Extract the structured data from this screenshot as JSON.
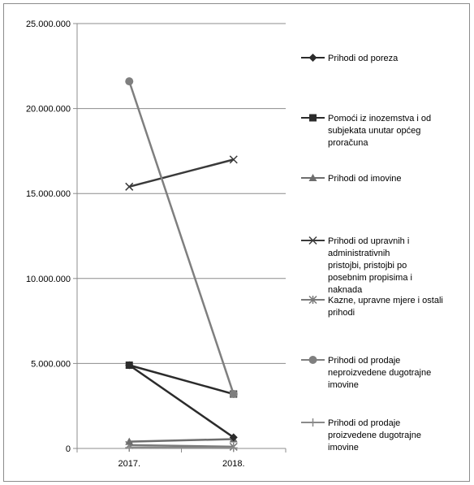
{
  "chart_data": {
    "type": "line",
    "title": "",
    "xlabel": "",
    "ylabel": "",
    "categories": [
      "2017.",
      "2018."
    ],
    "ylim": [
      0,
      25000000
    ],
    "y_ticks": [
      {
        "value": 0,
        "label": "0"
      },
      {
        "value": 5000000,
        "label": "5.000.000"
      },
      {
        "value": 10000000,
        "label": "10.000.000"
      },
      {
        "value": 15000000,
        "label": "15.000.000"
      },
      {
        "value": 20000000,
        "label": "20.000.000"
      },
      {
        "value": 25000000,
        "label": "25.000.000"
      }
    ],
    "grid": true,
    "legend_position": "right",
    "series": [
      {
        "name": "Prihodi od poreza",
        "legend_lines": [
          "Prihodi od poreza"
        ],
        "values": [
          4900000,
          650000
        ],
        "color": "#2b2b2b",
        "marker": "diamond"
      },
      {
        "name": "Pomoći iz inozemstva i od subjekata unutar općeg proračuna",
        "legend_lines": [
          "Pomoći iz inozemstva i od",
          "subjekata unutar općeg",
          "proračuna"
        ],
        "values": [
          4900000,
          3200000
        ],
        "color": "#2b2b2b",
        "marker": "square"
      },
      {
        "name": "Prihodi od imovine",
        "legend_lines": [
          "Prihodi od imovine"
        ],
        "values": [
          400000,
          550000
        ],
        "color": "#6e6e6e",
        "marker": "triangle"
      },
      {
        "name": "Prihodi od upravnih i administrativnih pristojbi, pristojbi po posebnim propisima i naknada",
        "legend_lines": [
          "Prihodi od upravnih i",
          "administrativnih",
          "pristojbi, pristojbi po",
          "posebnim propisima i",
          "naknada"
        ],
        "values": [
          15400000,
          17000000
        ],
        "color": "#3a3a3a",
        "marker": "x"
      },
      {
        "name": "Kazne, upravne mjere i ostali prihodi",
        "legend_lines": [
          "Kazne, upravne mjere i ostali",
          "prihodi"
        ],
        "values": [
          200000,
          100000
        ],
        "color": "#7a7a7a",
        "marker": "star"
      },
      {
        "name": "Prihodi od prodaje neproizvedene dugotrajne imovine",
        "legend_lines": [
          "Prihodi od prodaje",
          "neproizvedene dugotrajne",
          "imovine"
        ],
        "values": [
          21600000,
          3200000
        ],
        "color": "#7f7f7f",
        "marker": "circle"
      },
      {
        "name": "Prihodi od prodaje proizvedene dugotrajne imovine",
        "legend_lines": [
          "Prihodi od prodaje",
          "proizvedene dugotrajne",
          "imovine"
        ],
        "values": [
          50000,
          30000
        ],
        "color": "#8a8a8a",
        "marker": "plus"
      }
    ]
  }
}
